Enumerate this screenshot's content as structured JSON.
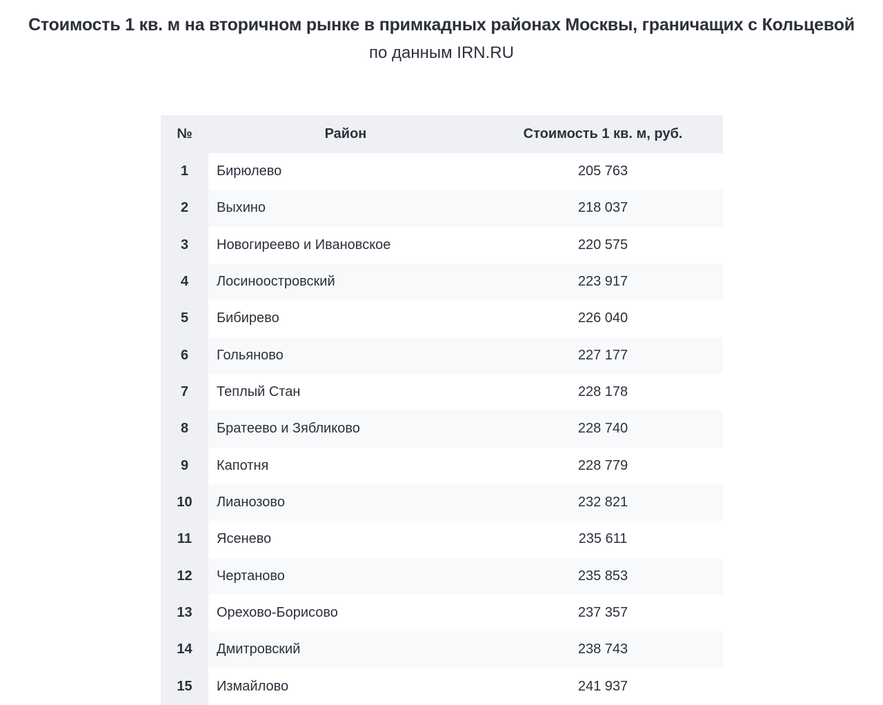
{
  "header": {
    "title": "Стоимость 1 кв. м на вторичном рынке в примкадных районах Москвы, граничащих с Кольцевой",
    "subtitle": "по данным IRN.RU"
  },
  "table": {
    "columns": [
      "№",
      "Район",
      "Стоимость 1 кв. м, руб."
    ],
    "rows": [
      [
        "1",
        "Бирюлево",
        "205 763"
      ],
      [
        "2",
        "Выхино",
        "218 037"
      ],
      [
        "3",
        "Новогиреево и Ивановское",
        "220 575"
      ],
      [
        "4",
        "Лосиноостровский",
        "223 917"
      ],
      [
        "5",
        "Бибирево",
        "226 040"
      ],
      [
        "6",
        "Гольяново",
        "227 177"
      ],
      [
        "7",
        "Теплый Стан",
        "228 178"
      ],
      [
        "8",
        "Братеево и Зябликово",
        "228 740"
      ],
      [
        "9",
        "Капотня",
        "228 779"
      ],
      [
        "10",
        "Лианозово",
        "232 821"
      ],
      [
        "11",
        "Ясенево",
        "235 611"
      ],
      [
        "12",
        "Чертаново",
        "235 853"
      ],
      [
        "13",
        "Орехово-Борисово",
        "237 357"
      ],
      [
        "14",
        "Дмитровский",
        "238 743"
      ],
      [
        "15",
        "Измайлово",
        "241 937"
      ]
    ]
  }
}
